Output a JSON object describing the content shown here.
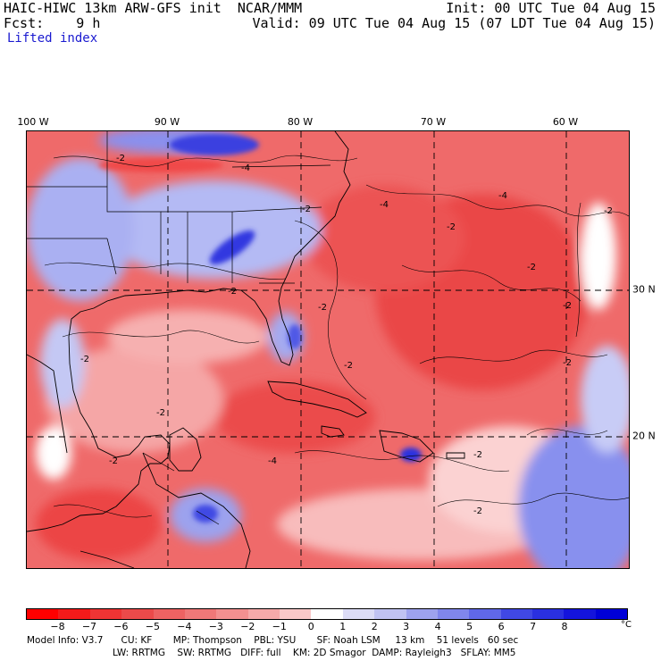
{
  "header": {
    "model_title": "HAIC-HIWC 13km ARW-GFS init",
    "org": "NCAR/MMM",
    "init": "Init: 00 UTC Tue 04 Aug 15",
    "fcst_label": "Fcst:",
    "fcst_value": "9 h",
    "valid": "Valid: 09 UTC Tue 04 Aug 15 (07 LDT Tue 04 Aug 15)",
    "field": "Lifted index"
  },
  "map": {
    "longitude_labels": [
      "100 W",
      "90 W",
      "80 W",
      "70 W",
      "60 W"
    ],
    "latitude_labels": [
      "30 N",
      "20 N"
    ],
    "contour_labels": [
      "-2",
      "-4",
      "-2",
      "-2",
      "-2",
      "-4",
      "-2",
      "-2",
      "-2",
      "-2",
      "-2",
      "-2",
      "-2",
      "-2",
      "-4",
      "-2",
      "-2",
      "-2",
      "-4"
    ],
    "colors": {
      "negative_strong": "#f01c1c",
      "negative_mid": "#ee5a5a",
      "negative_light": "#f59a9a",
      "neutral": "#ffffff",
      "positive_light": "#c8ccf6",
      "positive_mid": "#7a82ee",
      "positive_strong": "#1414e0"
    }
  },
  "colorbar": {
    "tick_labels": [
      "−8",
      "−7",
      "−6",
      "−5",
      "−4",
      "−3",
      "−2",
      "−1",
      "0",
      "1",
      "2",
      "3",
      "4",
      "5",
      "6",
      "7",
      "8"
    ],
    "unit": "°C",
    "colors": [
      "#ff0000",
      "#f41a1a",
      "#ef3434",
      "#ec4a4a",
      "#ee6262",
      "#f07878",
      "#f39090",
      "#f6aaaa",
      "#f9c8c8",
      "#ffffff",
      "#dcdcf6",
      "#c0c2f2",
      "#9ea2ee",
      "#8086ec",
      "#6068e8",
      "#4048e4",
      "#2a30e0",
      "#1414dc",
      "#0000d8"
    ]
  },
  "footer": {
    "line1": "Model Info: V3.7      CU: KF       MP: Thompson    PBL: YSU       SF: Noah LSM     13 km    51 levels   60 sec",
    "line2": "LW: RRTMG    SW: RRTMG   DIFF: full    KM: 2D Smagor  DAMP: Rayleigh3   SFLAY: MM5"
  }
}
